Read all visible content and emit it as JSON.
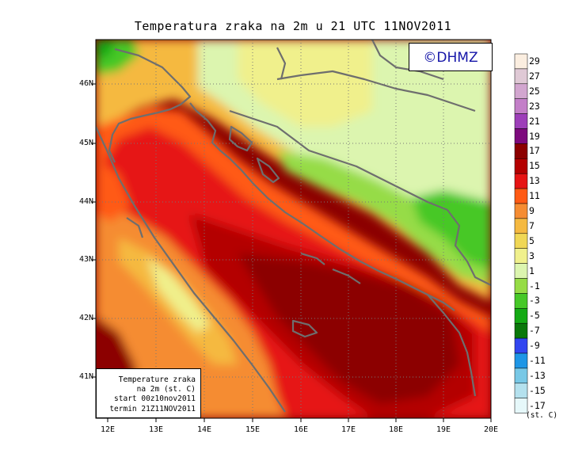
{
  "title": "Temperatura zraka na 2m u 21 UTC 11NOV2011",
  "logo": "©DHMZ",
  "info": {
    "line1": "Temperature zraka",
    "line2": "na 2m (st. C)",
    "line3": "start 00z10nov2011",
    "line4": "termin 21Z11NOV2011"
  },
  "lat_labels": [
    "46N",
    "45N",
    "44N",
    "43N",
    "42N",
    "41N"
  ],
  "lon_labels": [
    "12E",
    "13E",
    "14E",
    "15E",
    "16E",
    "17E",
    "18E",
    "19E",
    "20E"
  ],
  "colorbar": {
    "labels": [
      "29",
      "27",
      "25",
      "23",
      "21",
      "19",
      "17",
      "15",
      "13",
      "11",
      "9",
      "7",
      "5",
      "3",
      "1",
      "-1",
      "-3",
      "-5",
      "-7",
      "-9",
      "-11",
      "-13",
      "-15",
      "-17"
    ],
    "units": "(st. C)",
    "colors": [
      "#fbeee0",
      "#dfc9d5",
      "#d2a6cf",
      "#c37fc8",
      "#9d3fb9",
      "#7d0a7d",
      "#8c0000",
      "#b40000",
      "#e61414",
      "#ff5a14",
      "#f58c32",
      "#f5b941",
      "#f0d755",
      "#f0f08c",
      "#dcf5af",
      "#96dc46",
      "#46c828",
      "#14aa14",
      "#0a780a",
      "#3246f0",
      "#1e96e6",
      "#78c8e6",
      "#b4e1ee",
      "#e6f8fa"
    ]
  }
}
